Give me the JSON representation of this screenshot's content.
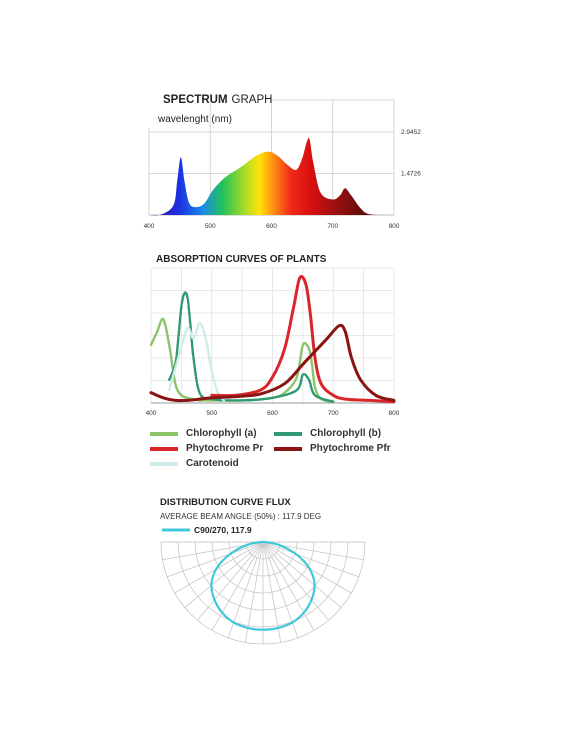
{
  "colors": {
    "chl_a": "#8cc46a",
    "chl_b": "#2f9a72",
    "phy_pr": "#d9262c",
    "phy_pfr": "#8a1414",
    "carotenoid": "#cfecea",
    "flux": "#40c8d8",
    "grid": "#cccccc"
  },
  "spectrum": {
    "title_bold": "SPECTRUM",
    "title_light": "GRAPH",
    "subtitle": "wavelenght (nm)"
  },
  "absorption": {
    "title": "ABSORPTION CURVES OF PLANTS"
  },
  "legend": {
    "items": [
      {
        "label": "Chlorophyll (a)",
        "color": "#8cc46a"
      },
      {
        "label": "Chlorophyll (b)",
        "color": "#2f9a72"
      },
      {
        "label": "Phytochrome Pr",
        "color": "#d9262c"
      },
      {
        "label": "Phytochrome Pfr",
        "color": "#8a1414"
      },
      {
        "label": "Carotenoid",
        "color": "#cfecea"
      }
    ]
  },
  "flux": {
    "title": "DISTRIBUTION CURVE FLUX",
    "beam_angle": "AVERAGE BEAM ANGLE  (50%) : 117.9 DEG",
    "series_label": "C90/270, 117.9"
  },
  "chart_data": [
    {
      "type": "area",
      "title": "SPECTRUM GRAPH",
      "xlabel": "wavelenght (nm)",
      "xlim": [
        400,
        800
      ],
      "ylim": [
        0,
        2.9452
      ],
      "x_ticks": [
        "400",
        "500",
        "600",
        "700",
        "800"
      ],
      "y_ticks": [
        "1.4726",
        "2.9452"
      ],
      "x": [
        400,
        420,
        440,
        446,
        452,
        458,
        465,
        475,
        490,
        505,
        525,
        550,
        575,
        595,
        610,
        625,
        640,
        650,
        657,
        662,
        668,
        680,
        700,
        712,
        720,
        730,
        745,
        760,
        800
      ],
      "values": [
        0,
        0.02,
        0.35,
        1.2,
        2.05,
        1.2,
        0.45,
        0.28,
        0.4,
        0.9,
        1.35,
        1.7,
        2.1,
        2.25,
        2.1,
        1.8,
        1.6,
        2.0,
        2.55,
        2.7,
        1.9,
        0.8,
        0.55,
        0.7,
        0.95,
        0.7,
        0.25,
        0.03,
        0
      ]
    },
    {
      "type": "line",
      "title": "ABSORPTION CURVES OF PLANTS",
      "xlim": [
        400,
        800
      ],
      "ylim": [
        0,
        100
      ],
      "x_ticks": [
        "400",
        "500",
        "600",
        "700",
        "800"
      ],
      "series": [
        {
          "name": "Chlorophyll (a)",
          "x": [
            400,
            410,
            420,
            430,
            440,
            450,
            460,
            470,
            480,
            500,
            550,
            600,
            620,
            640,
            650,
            660,
            665,
            670,
            680,
            700
          ],
          "values": [
            45,
            55,
            65,
            45,
            15,
            6,
            4,
            3,
            2,
            2,
            2,
            4,
            8,
            20,
            45,
            42,
            30,
            12,
            3,
            1
          ]
        },
        {
          "name": "Chlorophyll (b)",
          "x": [
            430,
            440,
            445,
            450,
            455,
            460,
            465,
            470,
            480,
            500,
            550,
            600,
            640,
            650,
            660,
            670,
            700
          ],
          "values": [
            18,
            30,
            50,
            75,
            85,
            82,
            60,
            35,
            8,
            3,
            2,
            4,
            10,
            22,
            18,
            6,
            1
          ]
        },
        {
          "name": "Carotenoid",
          "x": [
            430,
            445,
            460,
            470,
            480,
            490,
            500,
            510,
            520
          ],
          "values": [
            10,
            35,
            58,
            50,
            62,
            50,
            25,
            8,
            2
          ]
        },
        {
          "name": "Phytochrome Pr",
          "x": [
            500,
            540,
            580,
            600,
            620,
            635,
            645,
            655,
            662,
            670,
            680,
            700,
            720,
            760,
            800
          ],
          "values": [
            6,
            6,
            10,
            20,
            42,
            75,
            97,
            92,
            70,
            35,
            15,
            6,
            3,
            2,
            1
          ]
        },
        {
          "name": "Phytochrome Pfr",
          "x": [
            400,
            420,
            440,
            460,
            480,
            500,
            540,
            580,
            620,
            650,
            670,
            690,
            710,
            720,
            730,
            745,
            770,
            800
          ],
          "values": [
            8,
            4,
            2,
            2,
            3,
            4,
            5,
            7,
            15,
            30,
            40,
            50,
            60,
            55,
            35,
            18,
            6,
            2
          ]
        }
      ]
    },
    {
      "type": "polar",
      "title": "DISTRIBUTION CURVE FLUX",
      "series": [
        {
          "name": "C90/270, 117.9"
        }
      ]
    }
  ]
}
